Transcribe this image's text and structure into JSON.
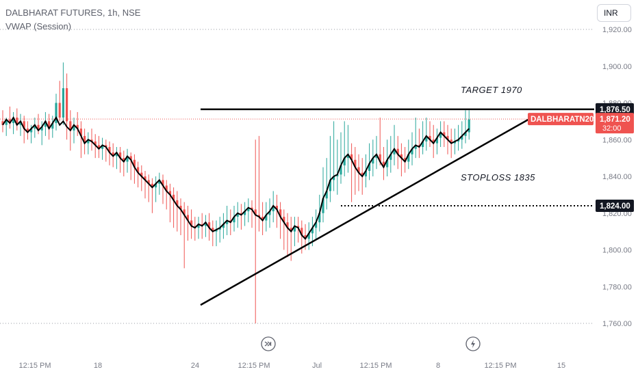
{
  "header": {
    "title": "DALBHARAT FUTURES, 1h, NSE",
    "indicator": "VWAP (Session)"
  },
  "currency_button": "INR",
  "colors": {
    "up": "#26a69a",
    "down": "#ef5350",
    "vwap": "#000000",
    "price_line": "#ef5350",
    "axis_text": "#787b86",
    "grid_dots": "#9598a1"
  },
  "icons": [
    "skip-forward-icon",
    "lightning-icon"
  ],
  "chart_data": {
    "type": "candlestick",
    "title": "DALBHARAT FUTURES, 1h, NSE",
    "y_axis": {
      "ticks": [
        1920,
        1900,
        1880,
        1860,
        1840,
        1820,
        1800,
        1780,
        1760
      ],
      "tick_labels": [
        "1,920.00",
        "1,900.00",
        "1,880.00",
        "1,860.00",
        "1,840.00",
        "1,820.00",
        "1,800.00",
        "1,780.00",
        "1,760.00"
      ],
      "range": [
        1756,
        1921
      ]
    },
    "x_axis": {
      "tick_labels": [
        "12:15 PM",
        "18",
        "24",
        "12:15 PM",
        "Jul",
        "12:15 PM",
        "8",
        "12:15 PM",
        "15"
      ]
    },
    "horizontal_levels": [
      {
        "label": "1,920.00",
        "value": 1920,
        "style": "dotted"
      },
      {
        "label": "1,871.20",
        "value": 1871.2,
        "style": "dotted-red"
      },
      {
        "label": "1,760.00",
        "value": 1760,
        "style": "dotted"
      }
    ],
    "drawings": [
      {
        "type": "resistance",
        "value": 1876.5,
        "label": "1,876.50"
      },
      {
        "type": "stoploss",
        "value": 1824.0,
        "label": "1,824.00"
      },
      {
        "type": "trendline",
        "from": 1770,
        "to": 1871.2
      }
    ],
    "annotations": [
      {
        "text": "TARGET 1970"
      },
      {
        "text": "STOPLOSS 1835"
      }
    ],
    "last_price": {
      "symbol": "DALBHARATN2024",
      "price": "1,871.20",
      "countdown": "32:00"
    },
    "vwap_series": [
      1868,
      1871,
      1869,
      1872,
      1868,
      1870,
      1866,
      1864,
      1866,
      1868,
      1865,
      1867,
      1870,
      1866,
      1869,
      1872,
      1868,
      1870,
      1867,
      1865,
      1868,
      1866,
      1862,
      1858,
      1860,
      1859,
      1857,
      1855,
      1857,
      1856,
      1853,
      1851,
      1853,
      1850,
      1848,
      1851,
      1849,
      1845,
      1842,
      1840,
      1838,
      1836,
      1834,
      1836,
      1838,
      1835,
      1832,
      1830,
      1827,
      1824,
      1822,
      1819,
      1816,
      1813,
      1812,
      1814,
      1813,
      1815,
      1812,
      1810,
      1811,
      1812,
      1814,
      1816,
      1815,
      1818,
      1820,
      1819,
      1821,
      1823,
      1822,
      1819,
      1818,
      1816,
      1819,
      1821,
      1824,
      1822,
      1818,
      1815,
      1812,
      1810,
      1813,
      1812,
      1808,
      1806,
      1809,
      1812,
      1815,
      1820,
      1828,
      1832,
      1838,
      1840,
      1841,
      1846,
      1850,
      1852,
      1849,
      1845,
      1842,
      1840,
      1843,
      1847,
      1850,
      1852,
      1848,
      1845,
      1849,
      1852,
      1855,
      1852,
      1850,
      1848,
      1852,
      1855,
      1857,
      1856,
      1859,
      1862,
      1860,
      1858,
      1861,
      1864,
      1862,
      1860,
      1858,
      1859,
      1860,
      1862,
      1864,
      1866
    ],
    "candles": [
      [
        1870,
        1876,
        1864,
        1868
      ],
      [
        1868,
        1872,
        1862,
        1871
      ],
      [
        1871,
        1878,
        1866,
        1869
      ],
      [
        1869,
        1875,
        1863,
        1872
      ],
      [
        1872,
        1877,
        1865,
        1868
      ],
      [
        1868,
        1874,
        1862,
        1870
      ],
      [
        1870,
        1873,
        1858,
        1866
      ],
      [
        1866,
        1870,
        1860,
        1864
      ],
      [
        1864,
        1868,
        1858,
        1866
      ],
      [
        1866,
        1872,
        1861,
        1868
      ],
      [
        1868,
        1874,
        1863,
        1865
      ],
      [
        1865,
        1870,
        1857,
        1867
      ],
      [
        1867,
        1875,
        1862,
        1870
      ],
      [
        1870,
        1874,
        1860,
        1866
      ],
      [
        1866,
        1873,
        1861,
        1869
      ],
      [
        1869,
        1885,
        1865,
        1880
      ],
      [
        1880,
        1892,
        1870,
        1872
      ],
      [
        1872,
        1902,
        1868,
        1888
      ],
      [
        1888,
        1896,
        1860,
        1870
      ],
      [
        1870,
        1876,
        1854,
        1865
      ],
      [
        1865,
        1872,
        1858,
        1868
      ],
      [
        1868,
        1875,
        1862,
        1866
      ],
      [
        1866,
        1870,
        1850,
        1862
      ],
      [
        1862,
        1866,
        1852,
        1858
      ],
      [
        1858,
        1864,
        1852,
        1860
      ],
      [
        1860,
        1866,
        1854,
        1859
      ],
      [
        1859,
        1863,
        1850,
        1857
      ],
      [
        1857,
        1862,
        1850,
        1855
      ],
      [
        1855,
        1861,
        1849,
        1857
      ],
      [
        1857,
        1860,
        1848,
        1856
      ],
      [
        1856,
        1859,
        1846,
        1853
      ],
      [
        1853,
        1858,
        1845,
        1851
      ],
      [
        1851,
        1856,
        1844,
        1853
      ],
      [
        1853,
        1856,
        1842,
        1850
      ],
      [
        1850,
        1854,
        1840,
        1848
      ],
      [
        1848,
        1855,
        1842,
        1851
      ],
      [
        1851,
        1853,
        1838,
        1849
      ],
      [
        1849,
        1852,
        1836,
        1845
      ],
      [
        1845,
        1848,
        1834,
        1842
      ],
      [
        1842,
        1846,
        1832,
        1840
      ],
      [
        1840,
        1843,
        1828,
        1838
      ],
      [
        1838,
        1841,
        1826,
        1836
      ],
      [
        1836,
        1839,
        1820,
        1834
      ],
      [
        1834,
        1840,
        1826,
        1836
      ],
      [
        1836,
        1842,
        1830,
        1838
      ],
      [
        1838,
        1841,
        1825,
        1835
      ],
      [
        1835,
        1838,
        1822,
        1832
      ],
      [
        1832,
        1836,
        1815,
        1830
      ],
      [
        1830,
        1834,
        1812,
        1827
      ],
      [
        1827,
        1832,
        1810,
        1824
      ],
      [
        1824,
        1828,
        1808,
        1822
      ],
      [
        1822,
        1826,
        1790,
        1819
      ],
      [
        1819,
        1824,
        1805,
        1816
      ],
      [
        1816,
        1822,
        1806,
        1813
      ],
      [
        1813,
        1818,
        1805,
        1812
      ],
      [
        1812,
        1818,
        1806,
        1814
      ],
      [
        1814,
        1820,
        1806,
        1813
      ],
      [
        1813,
        1819,
        1807,
        1815
      ],
      [
        1815,
        1820,
        1805,
        1812
      ],
      [
        1812,
        1816,
        1802,
        1810
      ],
      [
        1810,
        1816,
        1802,
        1811
      ],
      [
        1811,
        1818,
        1804,
        1812
      ],
      [
        1812,
        1820,
        1806,
        1814
      ],
      [
        1814,
        1824,
        1808,
        1816
      ],
      [
        1816,
        1822,
        1808,
        1815
      ],
      [
        1815,
        1824,
        1810,
        1818
      ],
      [
        1818,
        1826,
        1812,
        1820
      ],
      [
        1820,
        1825,
        1811,
        1819
      ],
      [
        1819,
        1826,
        1813,
        1821
      ],
      [
        1821,
        1828,
        1815,
        1823
      ],
      [
        1823,
        1827,
        1812,
        1822
      ],
      [
        1822,
        1860,
        1760,
        1819
      ],
      [
        1819,
        1862,
        1810,
        1818
      ],
      [
        1818,
        1826,
        1808,
        1816
      ],
      [
        1816,
        1826,
        1810,
        1819
      ],
      [
        1819,
        1828,
        1812,
        1821
      ],
      [
        1821,
        1832,
        1815,
        1824
      ],
      [
        1824,
        1830,
        1812,
        1822
      ],
      [
        1822,
        1826,
        1806,
        1818
      ],
      [
        1818,
        1822,
        1800,
        1815
      ],
      [
        1815,
        1820,
        1796,
        1812
      ],
      [
        1812,
        1818,
        1794,
        1810
      ],
      [
        1810,
        1818,
        1802,
        1813
      ],
      [
        1813,
        1818,
        1804,
        1812
      ],
      [
        1812,
        1816,
        1798,
        1808
      ],
      [
        1808,
        1814,
        1800,
        1806
      ],
      [
        1806,
        1815,
        1800,
        1809
      ],
      [
        1809,
        1818,
        1802,
        1812
      ],
      [
        1812,
        1822,
        1806,
        1815
      ],
      [
        1815,
        1830,
        1810,
        1820
      ],
      [
        1820,
        1845,
        1815,
        1828
      ],
      [
        1828,
        1850,
        1822,
        1832
      ],
      [
        1832,
        1862,
        1826,
        1838
      ],
      [
        1838,
        1870,
        1832,
        1840
      ],
      [
        1840,
        1860,
        1830,
        1841
      ],
      [
        1841,
        1864,
        1836,
        1846
      ],
      [
        1846,
        1870,
        1840,
        1850
      ],
      [
        1850,
        1868,
        1842,
        1852
      ],
      [
        1852,
        1858,
        1826,
        1849
      ],
      [
        1849,
        1856,
        1830,
        1845
      ],
      [
        1845,
        1852,
        1832,
        1842
      ],
      [
        1842,
        1850,
        1830,
        1840
      ],
      [
        1840,
        1852,
        1834,
        1843
      ],
      [
        1843,
        1858,
        1838,
        1847
      ],
      [
        1847,
        1860,
        1840,
        1850
      ],
      [
        1850,
        1862,
        1844,
        1852
      ],
      [
        1852,
        1872,
        1846,
        1848
      ],
      [
        1848,
        1856,
        1838,
        1845
      ],
      [
        1845,
        1860,
        1840,
        1849
      ],
      [
        1849,
        1862,
        1842,
        1852
      ],
      [
        1852,
        1868,
        1846,
        1855
      ],
      [
        1855,
        1862,
        1844,
        1852
      ],
      [
        1852,
        1858,
        1840,
        1850
      ],
      [
        1850,
        1856,
        1842,
        1848
      ],
      [
        1848,
        1860,
        1844,
        1852
      ],
      [
        1852,
        1864,
        1846,
        1855
      ],
      [
        1855,
        1872,
        1850,
        1857
      ],
      [
        1857,
        1866,
        1850,
        1856
      ],
      [
        1856,
        1870,
        1852,
        1859
      ],
      [
        1859,
        1872,
        1854,
        1862
      ],
      [
        1862,
        1870,
        1856,
        1860
      ],
      [
        1860,
        1868,
        1850,
        1858
      ],
      [
        1858,
        1866,
        1852,
        1861
      ],
      [
        1861,
        1870,
        1856,
        1864
      ],
      [
        1864,
        1870,
        1856,
        1862
      ],
      [
        1862,
        1868,
        1852,
        1860
      ],
      [
        1860,
        1866,
        1850,
        1858
      ],
      [
        1858,
        1866,
        1852,
        1859
      ],
      [
        1859,
        1868,
        1854,
        1860
      ],
      [
        1860,
        1870,
        1855,
        1862
      ],
      [
        1862,
        1876,
        1858,
        1864
      ],
      [
        1864,
        1876,
        1860,
        1871
      ]
    ]
  }
}
